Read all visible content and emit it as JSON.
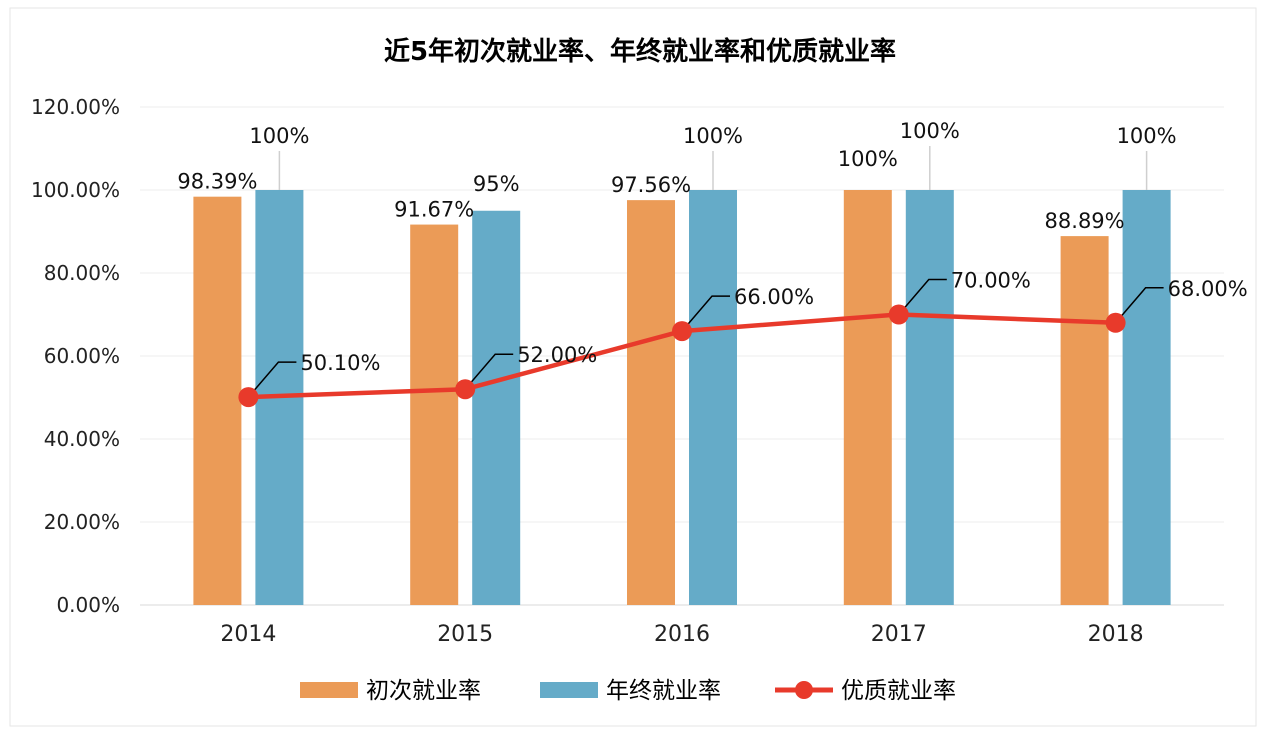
{
  "chart_data": {
    "type": "bar",
    "title": "近5年初次就业率、年终就业率和优质就业率",
    "categories": [
      "2014",
      "2015",
      "2016",
      "2017",
      "2018"
    ],
    "ylim": [
      0,
      120
    ],
    "yticks": [
      "0.00%",
      "20.00%",
      "40.00%",
      "60.00%",
      "80.00%",
      "100.00%",
      "120.00%"
    ],
    "grid": true,
    "legend_position": "bottom",
    "series": [
      {
        "name": "初次就业率",
        "kind": "bar",
        "color": "#EB9B57",
        "values": [
          98.39,
          91.67,
          97.56,
          100,
          88.89
        ],
        "labels": [
          "98.39%",
          "91.67%",
          "97.56%",
          "100%",
          "88.89%"
        ]
      },
      {
        "name": "年终就业率",
        "kind": "bar",
        "color": "#65ABC8",
        "values": [
          100,
          95,
          100,
          100,
          100
        ],
        "labels": [
          "100%",
          "95%",
          "100%",
          "100%",
          "100%"
        ]
      },
      {
        "name": "优质就业率",
        "kind": "line",
        "color": "#E83A2B",
        "values": [
          50.1,
          52.0,
          66.0,
          70.0,
          68.0
        ],
        "labels": [
          "50.10%",
          "52.00%",
          "66.00%",
          "70.00%",
          "68.00%"
        ]
      }
    ]
  }
}
